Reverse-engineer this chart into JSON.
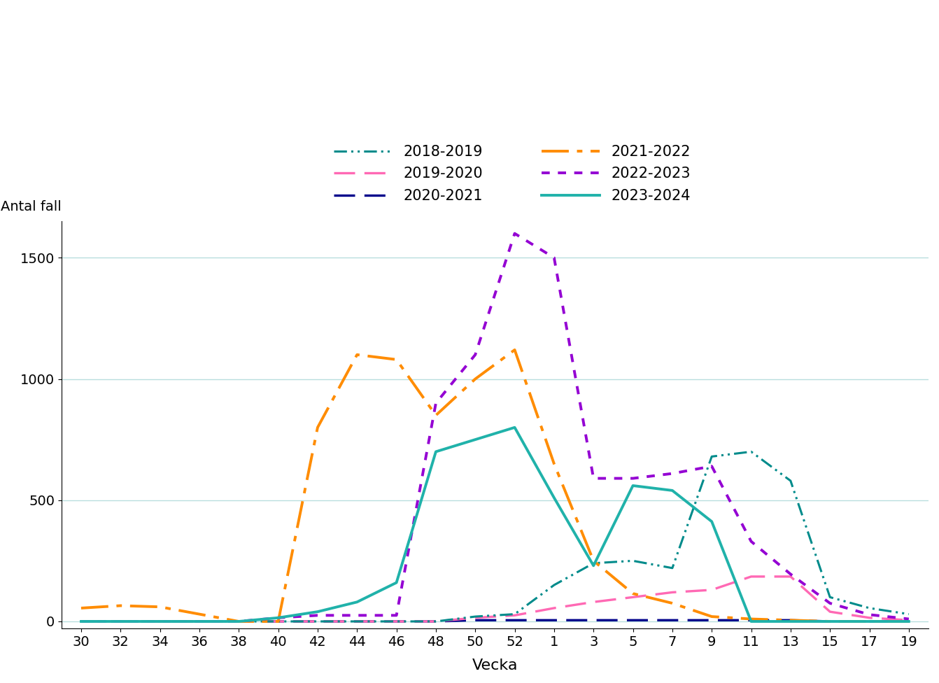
{
  "xlabel": "Vecka",
  "ylabel": "Antal fall",
  "ylim": [
    -30,
    1650
  ],
  "yticks": [
    0,
    500,
    1000,
    1500
  ],
  "x_labels": [
    "30",
    "32",
    "34",
    "36",
    "38",
    "40",
    "42",
    "44",
    "46",
    "48",
    "50",
    "52",
    "1",
    "3",
    "5",
    "7",
    "9",
    "11",
    "13",
    "15",
    "17",
    "19"
  ],
  "series_data": {
    "2018-2019": [
      0,
      0,
      0,
      0,
      0,
      0,
      0,
      0,
      0,
      0,
      20,
      30,
      150,
      240,
      250,
      220,
      680,
      700,
      580,
      100,
      55,
      30
    ],
    "2019-2020": [
      0,
      0,
      0,
      0,
      0,
      0,
      0,
      0,
      0,
      0,
      15,
      25,
      55,
      80,
      100,
      120,
      130,
      185,
      185,
      40,
      15,
      5
    ],
    "2020-2021": [
      0,
      0,
      0,
      0,
      0,
      0,
      0,
      0,
      0,
      0,
      5,
      5,
      5,
      5,
      5,
      5,
      5,
      5,
      5,
      0,
      0,
      0
    ],
    "2021-2022": [
      55,
      65,
      60,
      30,
      0,
      0,
      800,
      1100,
      1080,
      850,
      1000,
      1120,
      650,
      250,
      115,
      75,
      20,
      10,
      5,
      0,
      0,
      0
    ],
    "2022-2023": [
      0,
      0,
      0,
      0,
      0,
      15,
      25,
      25,
      25,
      900,
      1100,
      1600,
      1500,
      590,
      590,
      610,
      640,
      330,
      195,
      75,
      28,
      10
    ],
    "2023-2024": [
      0,
      0,
      0,
      0,
      0,
      15,
      40,
      80,
      160,
      700,
      750,
      800,
      510,
      230,
      560,
      540,
      412,
      0,
      0,
      0,
      0,
      0
    ]
  },
  "colors": {
    "2018-2019": "#008B8B",
    "2019-2020": "#FF69B4",
    "2020-2021": "#00008B",
    "2021-2022": "#FF8C00",
    "2022-2023": "#9400D3",
    "2023-2024": "#20B2AA"
  },
  "grid_color": "#b8dede"
}
